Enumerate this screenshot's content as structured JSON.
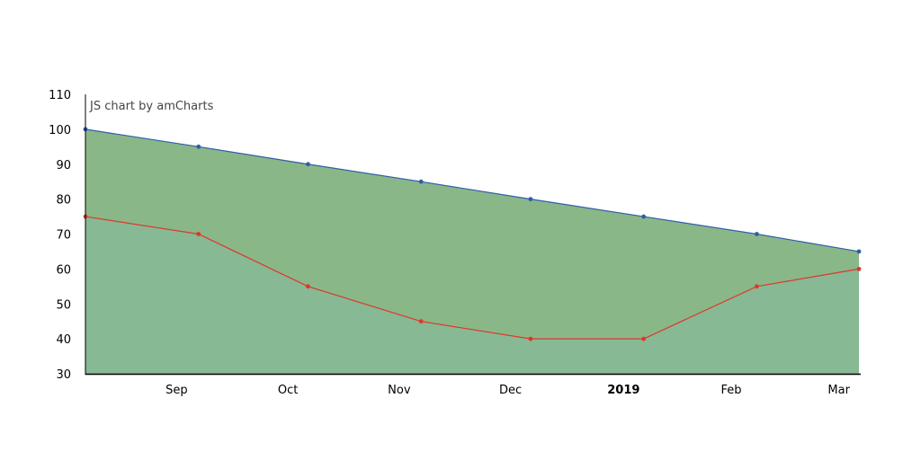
{
  "chart_data": {
    "type": "area",
    "credit": "JS chart by amCharts",
    "x": [
      "2018-08-22",
      "2018-09-22",
      "2018-10-22",
      "2018-11-22",
      "2018-12-22",
      "2019-01-22",
      "2019-02-22",
      "2019-03-22"
    ],
    "x_ticks": [
      {
        "date": "2018-09-01",
        "label": "Sep",
        "bold": false
      },
      {
        "date": "2018-10-01",
        "label": "Oct",
        "bold": false
      },
      {
        "date": "2018-11-01",
        "label": "Nov",
        "bold": false
      },
      {
        "date": "2018-12-01",
        "label": "Dec",
        "bold": false
      },
      {
        "date": "2019-01-01",
        "label": "2019",
        "bold": true
      },
      {
        "date": "2019-02-01",
        "label": "Feb",
        "bold": false
      },
      {
        "date": "2019-03-01",
        "label": "Mar",
        "bold": false
      }
    ],
    "ylim": [
      30,
      110
    ],
    "y_ticks": [
      30,
      40,
      50,
      60,
      70,
      80,
      90,
      100,
      110
    ],
    "grid": false,
    "series": [
      {
        "values": [
          100,
          95,
          90,
          85,
          80,
          75,
          70,
          65
        ],
        "line_color": "#2f5ea8",
        "fill_color": "#8ab788"
      },
      {
        "values": [
          75,
          70,
          55,
          45,
          40,
          40,
          55,
          60
        ],
        "line_color": "#e0362b",
        "fill_color": "#86b994"
      }
    ]
  }
}
